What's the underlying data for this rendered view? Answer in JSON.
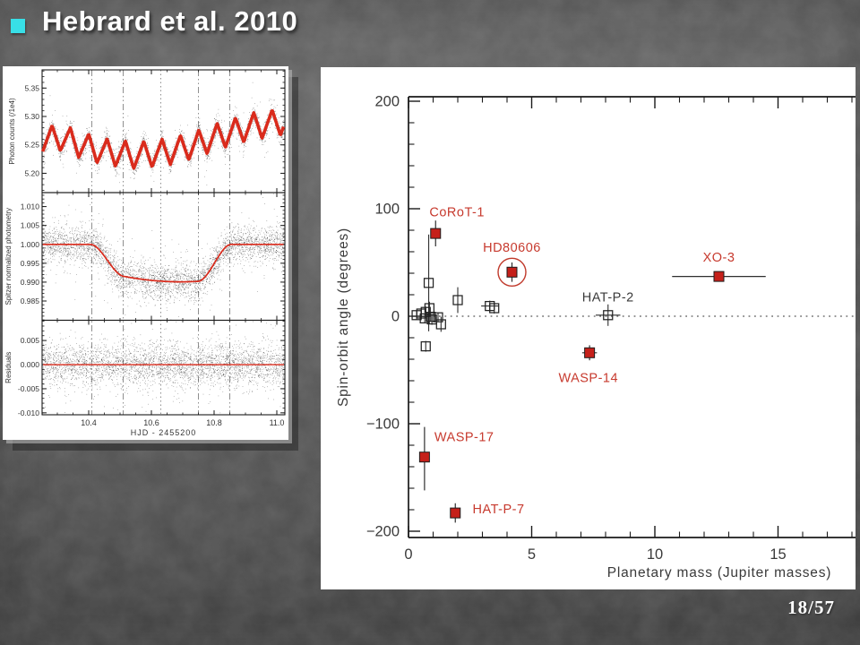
{
  "slide": {
    "title": "Hebrard et al. 2010",
    "bullet_color": "#38dfe7",
    "page_number": "18/57"
  },
  "palette": {
    "model_red": "#da2b1c",
    "marker_red": "#c5201a",
    "label_red": "#c73a2e",
    "axis_black": "#1a1a1a",
    "text_gray": "#3a3a3a",
    "contact_line_gray": "#8f8f8f"
  },
  "chart_data": [
    {
      "id": "spitzer-transit-lightcurve",
      "type": "scatter",
      "description": "Spitzer photometry: raw photon counts with sawtooth systematics and red model, normalized transit light curve with red model, residuals",
      "xlabel": "HJD - 2455200",
      "xlim": [
        10.251,
        11.026
      ],
      "xticks": [
        10.4,
        10.6,
        10.8,
        11.0
      ],
      "xtick_labels": [
        "10.4",
        "10.6",
        "10.8",
        "11.0"
      ],
      "x_minor_step": 0.05,
      "contact_lines": [
        {
          "t": 10.41,
          "style": "dashdot"
        },
        {
          "t": 10.51,
          "style": "dashdot"
        },
        {
          "t": 10.63,
          "style": "dot"
        },
        {
          "t": 10.75,
          "style": "dashdot"
        },
        {
          "t": 10.85,
          "style": "dashdot"
        }
      ],
      "panels": [
        {
          "ylabel": "Photon counts (/1e4)",
          "ylim": [
            5.166,
            5.382
          ],
          "yticks": [
            5.2,
            5.25,
            5.3,
            5.35
          ],
          "ytick_labels": [
            "5.20",
            "5.25",
            "5.30",
            "5.35"
          ],
          "y_minor_step": 0.01,
          "model": {
            "kind": "ramp_sawtooth",
            "trend": [
              [
                10.251,
                5.258
              ],
              [
                10.31,
                5.263
              ],
              [
                10.38,
                5.249
              ],
              [
                10.45,
                5.238
              ],
              [
                10.55,
                5.2315
              ],
              [
                10.65,
                5.2375
              ],
              [
                10.73,
                5.2485
              ],
              [
                10.82,
                5.2665
              ],
              [
                10.92,
                5.2825
              ],
              [
                11.026,
                5.2915
              ]
            ],
            "saw_amplitude": 0.0235,
            "saw_period": 0.0585,
            "saw_asymmetry": 0.55
          },
          "noise_sigma": 0.0095,
          "n_points": 2600
        },
        {
          "ylabel": "Spitzer normalized photometry",
          "ylim": [
            0.9799,
            1.0137
          ],
          "yticks": [
            0.985,
            0.99,
            0.995,
            1.0,
            1.005,
            1.01
          ],
          "ytick_labels": [
            "0.985",
            "0.990",
            "0.995",
            "1.000",
            "1.005",
            "1.010"
          ],
          "y_minor_step": 0.001,
          "model": {
            "kind": "transit",
            "contacts": [
              10.405,
              10.515,
              10.748,
              10.855
            ],
            "flux_after_ingress": 0.9915,
            "flux_before_egress": 0.9902,
            "mid_extra_dip": 0.0006
          },
          "noise_sigma": 0.0023,
          "n_points": 3600
        },
        {
          "ylabel": "Residuals",
          "ylim": [
            -0.0104,
            0.0092
          ],
          "yticks": [
            -0.01,
            -0.005,
            0.0,
            0.005
          ],
          "ytick_labels": [
            "-0.010",
            "-0.005",
            "0.000",
            "0.005"
          ],
          "y_minor_step": 0.001,
          "model": {
            "kind": "flat",
            "level": 0.0
          },
          "noise_sigma": 0.0021,
          "n_points": 3600
        }
      ]
    },
    {
      "id": "spin-orbit-vs-mass",
      "type": "scatter",
      "xlabel": "Planetary mass (Jupiter masses)",
      "ylabel": "Spin-orbit angle (degrees)",
      "xlim": [
        0,
        18.15
      ],
      "ylim": [
        -206,
        204
      ],
      "xticks": [
        0,
        5,
        10,
        15
      ],
      "xtick_labels": [
        "0",
        "5",
        "10",
        "15"
      ],
      "x_minor_step": 1,
      "yticks": [
        -200,
        -100,
        0,
        100,
        200
      ],
      "ytick_labels": [
        "−200",
        "−100",
        "0",
        "100",
        "200"
      ],
      "y_minor_step": 20,
      "zero_line_y": 0,
      "red_points": [
        {
          "name": "CoRoT-1",
          "x": 1.1,
          "y": 77,
          "yerr": 12
        },
        {
          "name": "HD80606",
          "x": 4.2,
          "y": 41,
          "yerr": 9,
          "circled": true
        },
        {
          "name": "XO-3",
          "x": 12.6,
          "y": 37,
          "yerr": 4,
          "xerr": 1.9
        },
        {
          "name": "WASP-14",
          "x": 7.35,
          "y": -34,
          "yerr": 7,
          "xerr": 0.3
        },
        {
          "name": "WASP-17",
          "x": 0.65,
          "y": -131,
          "yerr_hi": 28,
          "yerr_lo": 31
        },
        {
          "name": "HAT-P-7",
          "x": 1.9,
          "y": -183,
          "yerr": 9
        }
      ],
      "black_points": [
        {
          "x": 0.82,
          "y": 31,
          "yerr": 45
        },
        {
          "x": 2.0,
          "y": 15,
          "yerr": 12
        },
        {
          "x": 3.3,
          "y": 9.5,
          "yerr": 5,
          "xerr": 0.35
        },
        {
          "x": 3.48,
          "y": 7.5,
          "yerr": 5
        },
        {
          "x": 0.33,
          "y": 1,
          "yerr": 4
        },
        {
          "x": 0.52,
          "y": 2.5,
          "yerr": 5
        },
        {
          "x": 0.7,
          "y": 4,
          "yerr": 5
        },
        {
          "x": 0.85,
          "y": 7.5,
          "yerr": 6
        },
        {
          "x": 0.9,
          "y": -0.5,
          "yerr": 4
        },
        {
          "x": 0.66,
          "y": -2,
          "yerr": 4
        },
        {
          "x": 0.95,
          "y": -3,
          "yerr": 5
        },
        {
          "x": 1.2,
          "y": -1,
          "yerr": 4
        },
        {
          "x": 1.32,
          "y": -7.5,
          "yerr": 7
        },
        {
          "x": 0.7,
          "y": -28,
          "yerr": 5
        },
        {
          "name": "HAT-P-2",
          "x": 8.1,
          "y": 1,
          "yerr": 10,
          "xerr": 0.5
        }
      ],
      "point_labels": [
        {
          "text": "CoRoT-1",
          "x": 0.85,
          "y": 97,
          "anchor": "start",
          "color": "red"
        },
        {
          "text": "HD80606",
          "x": 4.2,
          "y": 64,
          "anchor": "middle",
          "color": "red"
        },
        {
          "text": "XO-3",
          "x": 12.6,
          "y": 55,
          "anchor": "middle",
          "color": "red"
        },
        {
          "text": "HAT-P-2",
          "x": 8.1,
          "y": 18,
          "anchor": "middle",
          "color": "black"
        },
        {
          "text": "WASP-14",
          "x": 7.3,
          "y": -57,
          "anchor": "middle",
          "color": "red"
        },
        {
          "text": "WASP-17",
          "x": 1.05,
          "y": -112,
          "anchor": "start",
          "color": "red"
        },
        {
          "text": "HAT-P-7",
          "x": 2.6,
          "y": -179,
          "anchor": "start",
          "color": "red"
        }
      ]
    }
  ]
}
